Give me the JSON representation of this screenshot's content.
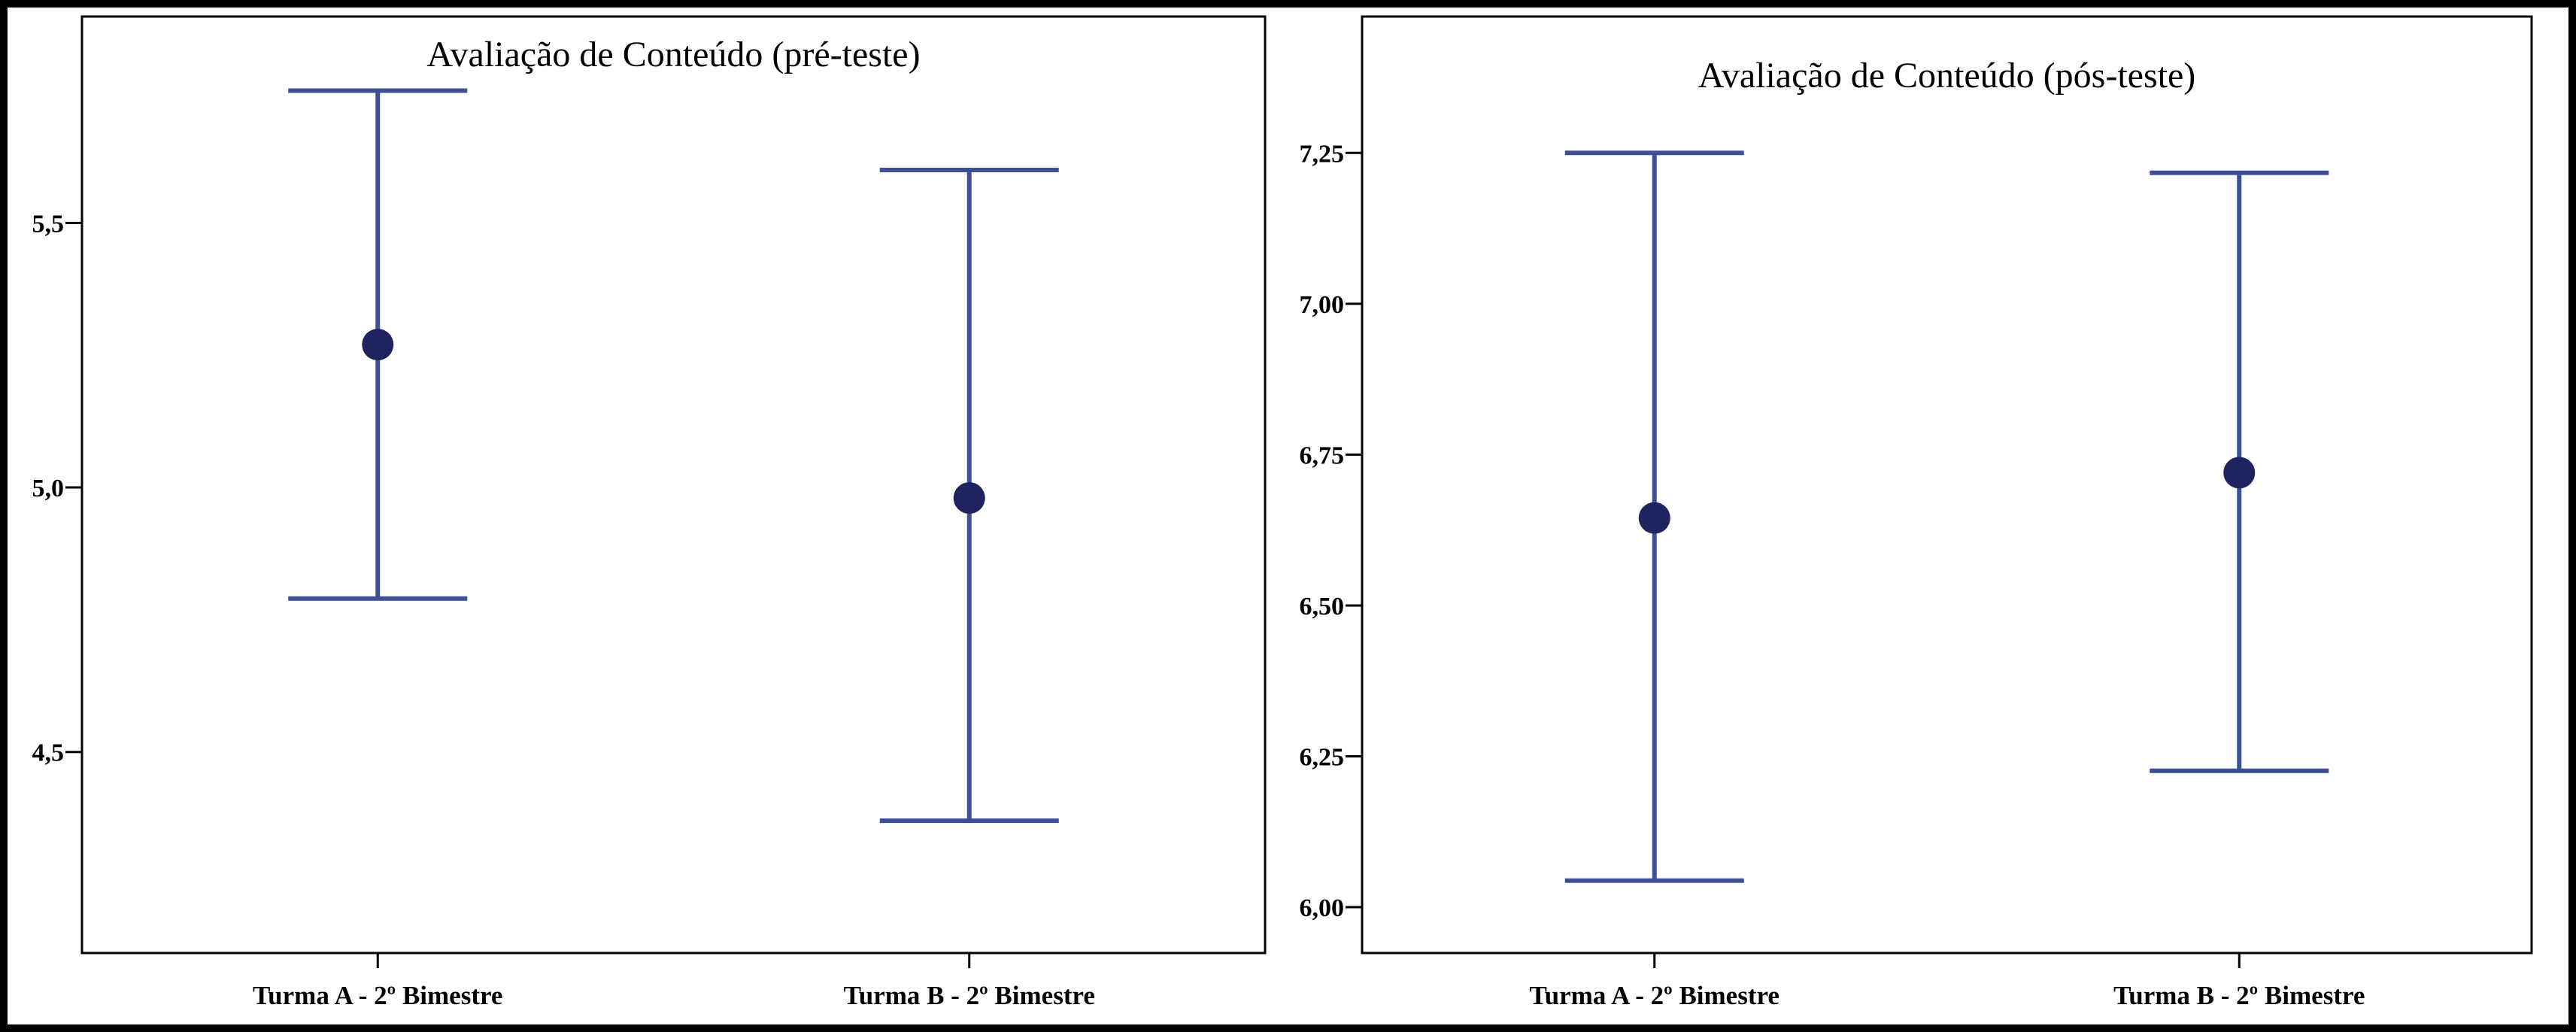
{
  "chart_data": [
    {
      "type": "errorbar",
      "title": "Avaliação de Conteúdo (pré-teste)",
      "categories": [
        "Turma A - 2º Bimestre",
        "Turma B - 2º Bimestre"
      ],
      "values": [
        5.27,
        4.98
      ],
      "lower": [
        4.79,
        4.37
      ],
      "upper": [
        5.75,
        5.6
      ],
      "color": "#3d5097",
      "marker_color": "#1f2460",
      "ylim": [
        4.12,
        5.89
      ],
      "yticks": [
        {
          "value": 4.5,
          "label": "4,5"
        },
        {
          "value": 5.0,
          "label": "5,0"
        },
        {
          "value": 5.5,
          "label": "5,5"
        }
      ]
    },
    {
      "type": "errorbar",
      "title": "Avaliação de Conteúdo (pós-teste)",
      "categories": [
        "Turma A - 2º Bimestre",
        "Turma B - 2º Bimestre"
      ],
      "values": [
        6.645,
        6.72
      ],
      "lower": [
        6.044,
        6.226
      ],
      "upper": [
        7.25,
        7.217
      ],
      "color": "#3d5097",
      "marker_color": "#1f2460",
      "ylim": [
        5.924,
        7.476
      ],
      "yticks": [
        {
          "value": 6.0,
          "label": "6,00"
        },
        {
          "value": 6.25,
          "label": "6,25"
        },
        {
          "value": 6.5,
          "label": "6,50"
        },
        {
          "value": 6.75,
          "label": "6,75"
        },
        {
          "value": 7.0,
          "label": "7,00"
        },
        {
          "value": 7.25,
          "label": "7,25"
        }
      ]
    }
  ]
}
